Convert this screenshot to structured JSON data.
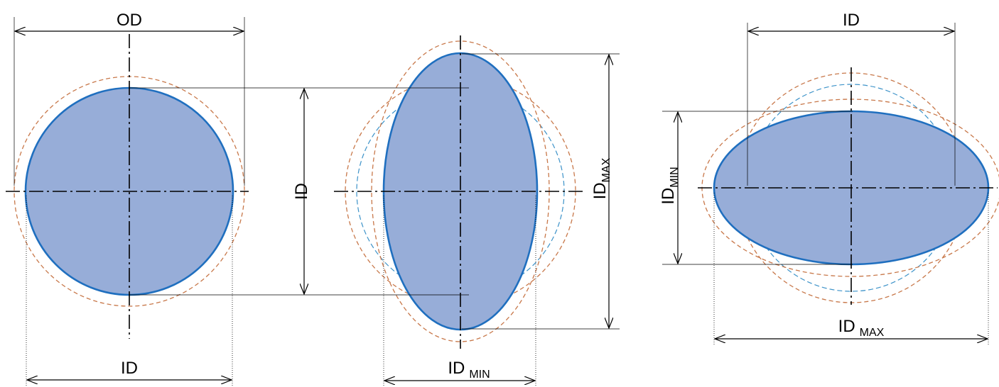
{
  "figure1": {
    "od_label": "OD",
    "id_label": "ID"
  },
  "figure2": {
    "id_label": "ID",
    "idmax_main": "ID",
    "idmax_sub": "MAX",
    "idmin_main": "ID",
    "idmin_sub": "MIN"
  },
  "figure3": {
    "id_label": "ID",
    "idmin_main": "ID",
    "idmin_sub": "MIN",
    "idmax_main": "ID",
    "idmax_sub": "MAX"
  },
  "colors": {
    "fill": "#97add8",
    "outline": "#1f6fbf",
    "od_dashed": "#c8784a",
    "id_dashed": "#3d93c9"
  }
}
